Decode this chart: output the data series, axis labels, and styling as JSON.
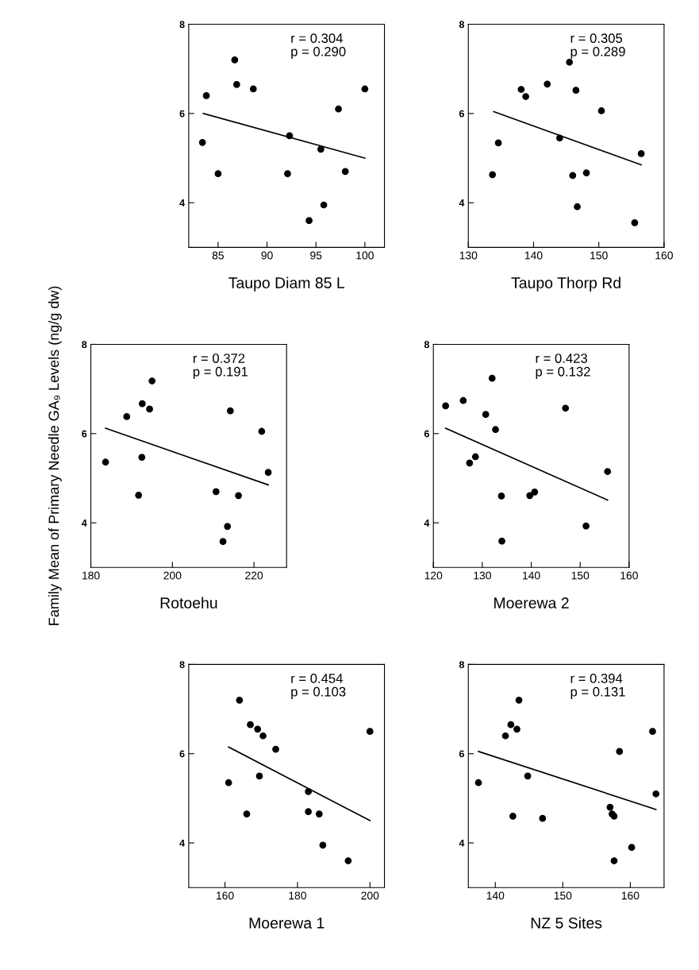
{
  "chart_data": [
    {
      "type": "scatter",
      "xlabel": "Taupo Diam 85 L",
      "annotations": [
        "r = 0.304\np = 0.290"
      ],
      "xlim": [
        82,
        102
      ],
      "xticks": [
        85,
        90,
        95,
        100
      ],
      "ylim": [
        3,
        8
      ],
      "yticks": [
        4,
        6,
        8
      ],
      "grid": false,
      "legend": false,
      "series": [
        {
          "type": "scatter",
          "color": "#000000",
          "marker": "circle",
          "x": [
            83.4,
            83.8,
            85.0,
            86.7,
            86.9,
            88.6,
            92.3,
            92.1,
            95.5,
            94.3,
            95.8,
            97.3,
            98.0,
            100.0
          ],
          "values": [
            5.35,
            6.4,
            4.65,
            7.2,
            6.65,
            6.55,
            5.5,
            4.65,
            5.2,
            3.6,
            3.95,
            6.1,
            4.7,
            6.55
          ]
        },
        {
          "type": "line",
          "color": "#000000",
          "marker": "none",
          "line_style": "solid",
          "x": [
            83.5,
            100.0
          ],
          "values": [
            6.0,
            5.0
          ]
        }
      ]
    },
    {
      "type": "scatter",
      "xlabel": "Taupo Thorp Rd",
      "annotations": [
        "r = 0.305\np = 0.289"
      ],
      "xlim": [
        130,
        160
      ],
      "xticks": [
        130,
        140,
        150,
        160
      ],
      "ylim": [
        3,
        8
      ],
      "yticks": [
        4,
        6,
        8
      ],
      "grid": false,
      "legend": false,
      "series": [
        {
          "type": "scatter",
          "color": "#000000",
          "marker": "circle",
          "x": [
            133.7,
            134.6,
            138.1,
            138.8,
            142.1,
            145.5,
            144.0,
            146.5,
            146.0,
            148.1,
            146.7,
            150.4,
            155.5,
            156.5
          ],
          "values": [
            4.63,
            5.34,
            6.54,
            6.38,
            6.66,
            7.15,
            5.45,
            6.52,
            4.61,
            4.67,
            3.91,
            6.06,
            3.55,
            5.1
          ]
        },
        {
          "type": "line",
          "color": "#000000",
          "marker": "none",
          "line_style": "solid",
          "x": [
            133.9,
            156.5
          ],
          "values": [
            6.04,
            4.85
          ]
        }
      ]
    },
    {
      "type": "scatter",
      "xlabel": "Rotoehu",
      "ylabel": "Family Mean of Primary Needle GA₉ Levels (ng/g dw)",
      "annotations": [
        "r = 0.372\np = 0.191"
      ],
      "xlim": [
        180,
        228
      ],
      "xticks": [
        180,
        200,
        220
      ],
      "ylim": [
        3,
        8
      ],
      "yticks": [
        4,
        6,
        8
      ],
      "grid": false,
      "legend": false,
      "series": [
        {
          "type": "scatter",
          "color": "#000000",
          "marker": "circle",
          "x": [
            183.6,
            188.8,
            192.6,
            195.0,
            194.4,
            192.5,
            191.7,
            214.2,
            210.7,
            216.2,
            213.5,
            212.4,
            221.9,
            223.5
          ],
          "values": [
            5.36,
            6.38,
            6.67,
            7.18,
            6.55,
            5.47,
            4.62,
            6.51,
            4.7,
            4.61,
            3.92,
            3.58,
            6.05,
            5.13
          ]
        },
        {
          "type": "line",
          "color": "#000000",
          "marker": "none",
          "line_style": "solid",
          "x": [
            183.6,
            223.5
          ],
          "values": [
            6.12,
            4.85
          ]
        }
      ]
    },
    {
      "type": "scatter",
      "xlabel": "Moerewa 2",
      "annotations": [
        "r = 0.423\np = 0.132"
      ],
      "xlim": [
        120,
        160
      ],
      "xticks": [
        120,
        130,
        140,
        150,
        160
      ],
      "ylim": [
        3,
        8
      ],
      "yticks": [
        4,
        6,
        8
      ],
      "grid": false,
      "legend": false,
      "series": [
        {
          "type": "scatter",
          "color": "#000000",
          "marker": "circle",
          "x": [
            122.5,
            126.1,
            132.0,
            130.7,
            132.7,
            127.4,
            128.6,
            133.9,
            139.7,
            140.7,
            134.0,
            147.0,
            151.2,
            155.6
          ],
          "values": [
            6.62,
            6.74,
            7.24,
            6.43,
            6.09,
            5.34,
            5.48,
            4.6,
            4.61,
            4.69,
            3.59,
            6.57,
            3.93,
            5.15
          ]
        },
        {
          "type": "line",
          "color": "#000000",
          "marker": "none",
          "line_style": "solid",
          "x": [
            122.5,
            155.6
          ],
          "values": [
            6.12,
            4.51
          ]
        }
      ]
    },
    {
      "type": "scatter",
      "xlabel": "Moerewa 1",
      "annotations": [
        "r = 0.454\np = 0.103"
      ],
      "xlim": [
        150,
        204
      ],
      "xticks": [
        160,
        180,
        200
      ],
      "ylim": [
        3,
        8
      ],
      "yticks": [
        4,
        6,
        8
      ],
      "grid": false,
      "legend": false,
      "series": [
        {
          "type": "scatter",
          "color": "#000000",
          "marker": "circle",
          "x": [
            161,
            164,
            166,
            167,
            169,
            169.5,
            170.5,
            174,
            183,
            183,
            186,
            187,
            194,
            200
          ],
          "values": [
            5.35,
            7.2,
            4.65,
            6.65,
            6.55,
            5.5,
            6.4,
            6.1,
            5.15,
            4.7,
            4.65,
            3.95,
            3.6,
            6.5
          ]
        },
        {
          "type": "line",
          "color": "#000000",
          "marker": "none",
          "line_style": "solid",
          "x": [
            161,
            200
          ],
          "values": [
            6.15,
            4.5
          ]
        }
      ]
    },
    {
      "type": "scatter",
      "xlabel": "NZ 5 Sites",
      "annotations": [
        "r = 0.394\np = 0.131"
      ],
      "xlim": [
        136,
        165
      ],
      "xticks": [
        140,
        150,
        160
      ],
      "ylim": [
        3,
        8
      ],
      "yticks": [
        4,
        6,
        8
      ],
      "grid": false,
      "legend": false,
      "series": [
        {
          "type": "scatter",
          "color": "#000000",
          "marker": "circle",
          "x": [
            137.5,
            141.5,
            142.3,
            142.6,
            143.2,
            143.5,
            144.8,
            147.0,
            157.0,
            157.3,
            157.6,
            157.6,
            158.4,
            160.2,
            163.3,
            163.8
          ],
          "values": [
            5.35,
            6.4,
            6.65,
            4.6,
            6.55,
            7.2,
            5.5,
            4.55,
            4.8,
            4.65,
            4.6,
            3.6,
            6.05,
            3.9,
            6.5,
            5.1
          ]
        },
        {
          "type": "line",
          "color": "#000000",
          "marker": "none",
          "line_style": "solid",
          "x": [
            137.5,
            163.8
          ],
          "values": [
            6.05,
            4.75
          ]
        }
      ]
    }
  ]
}
